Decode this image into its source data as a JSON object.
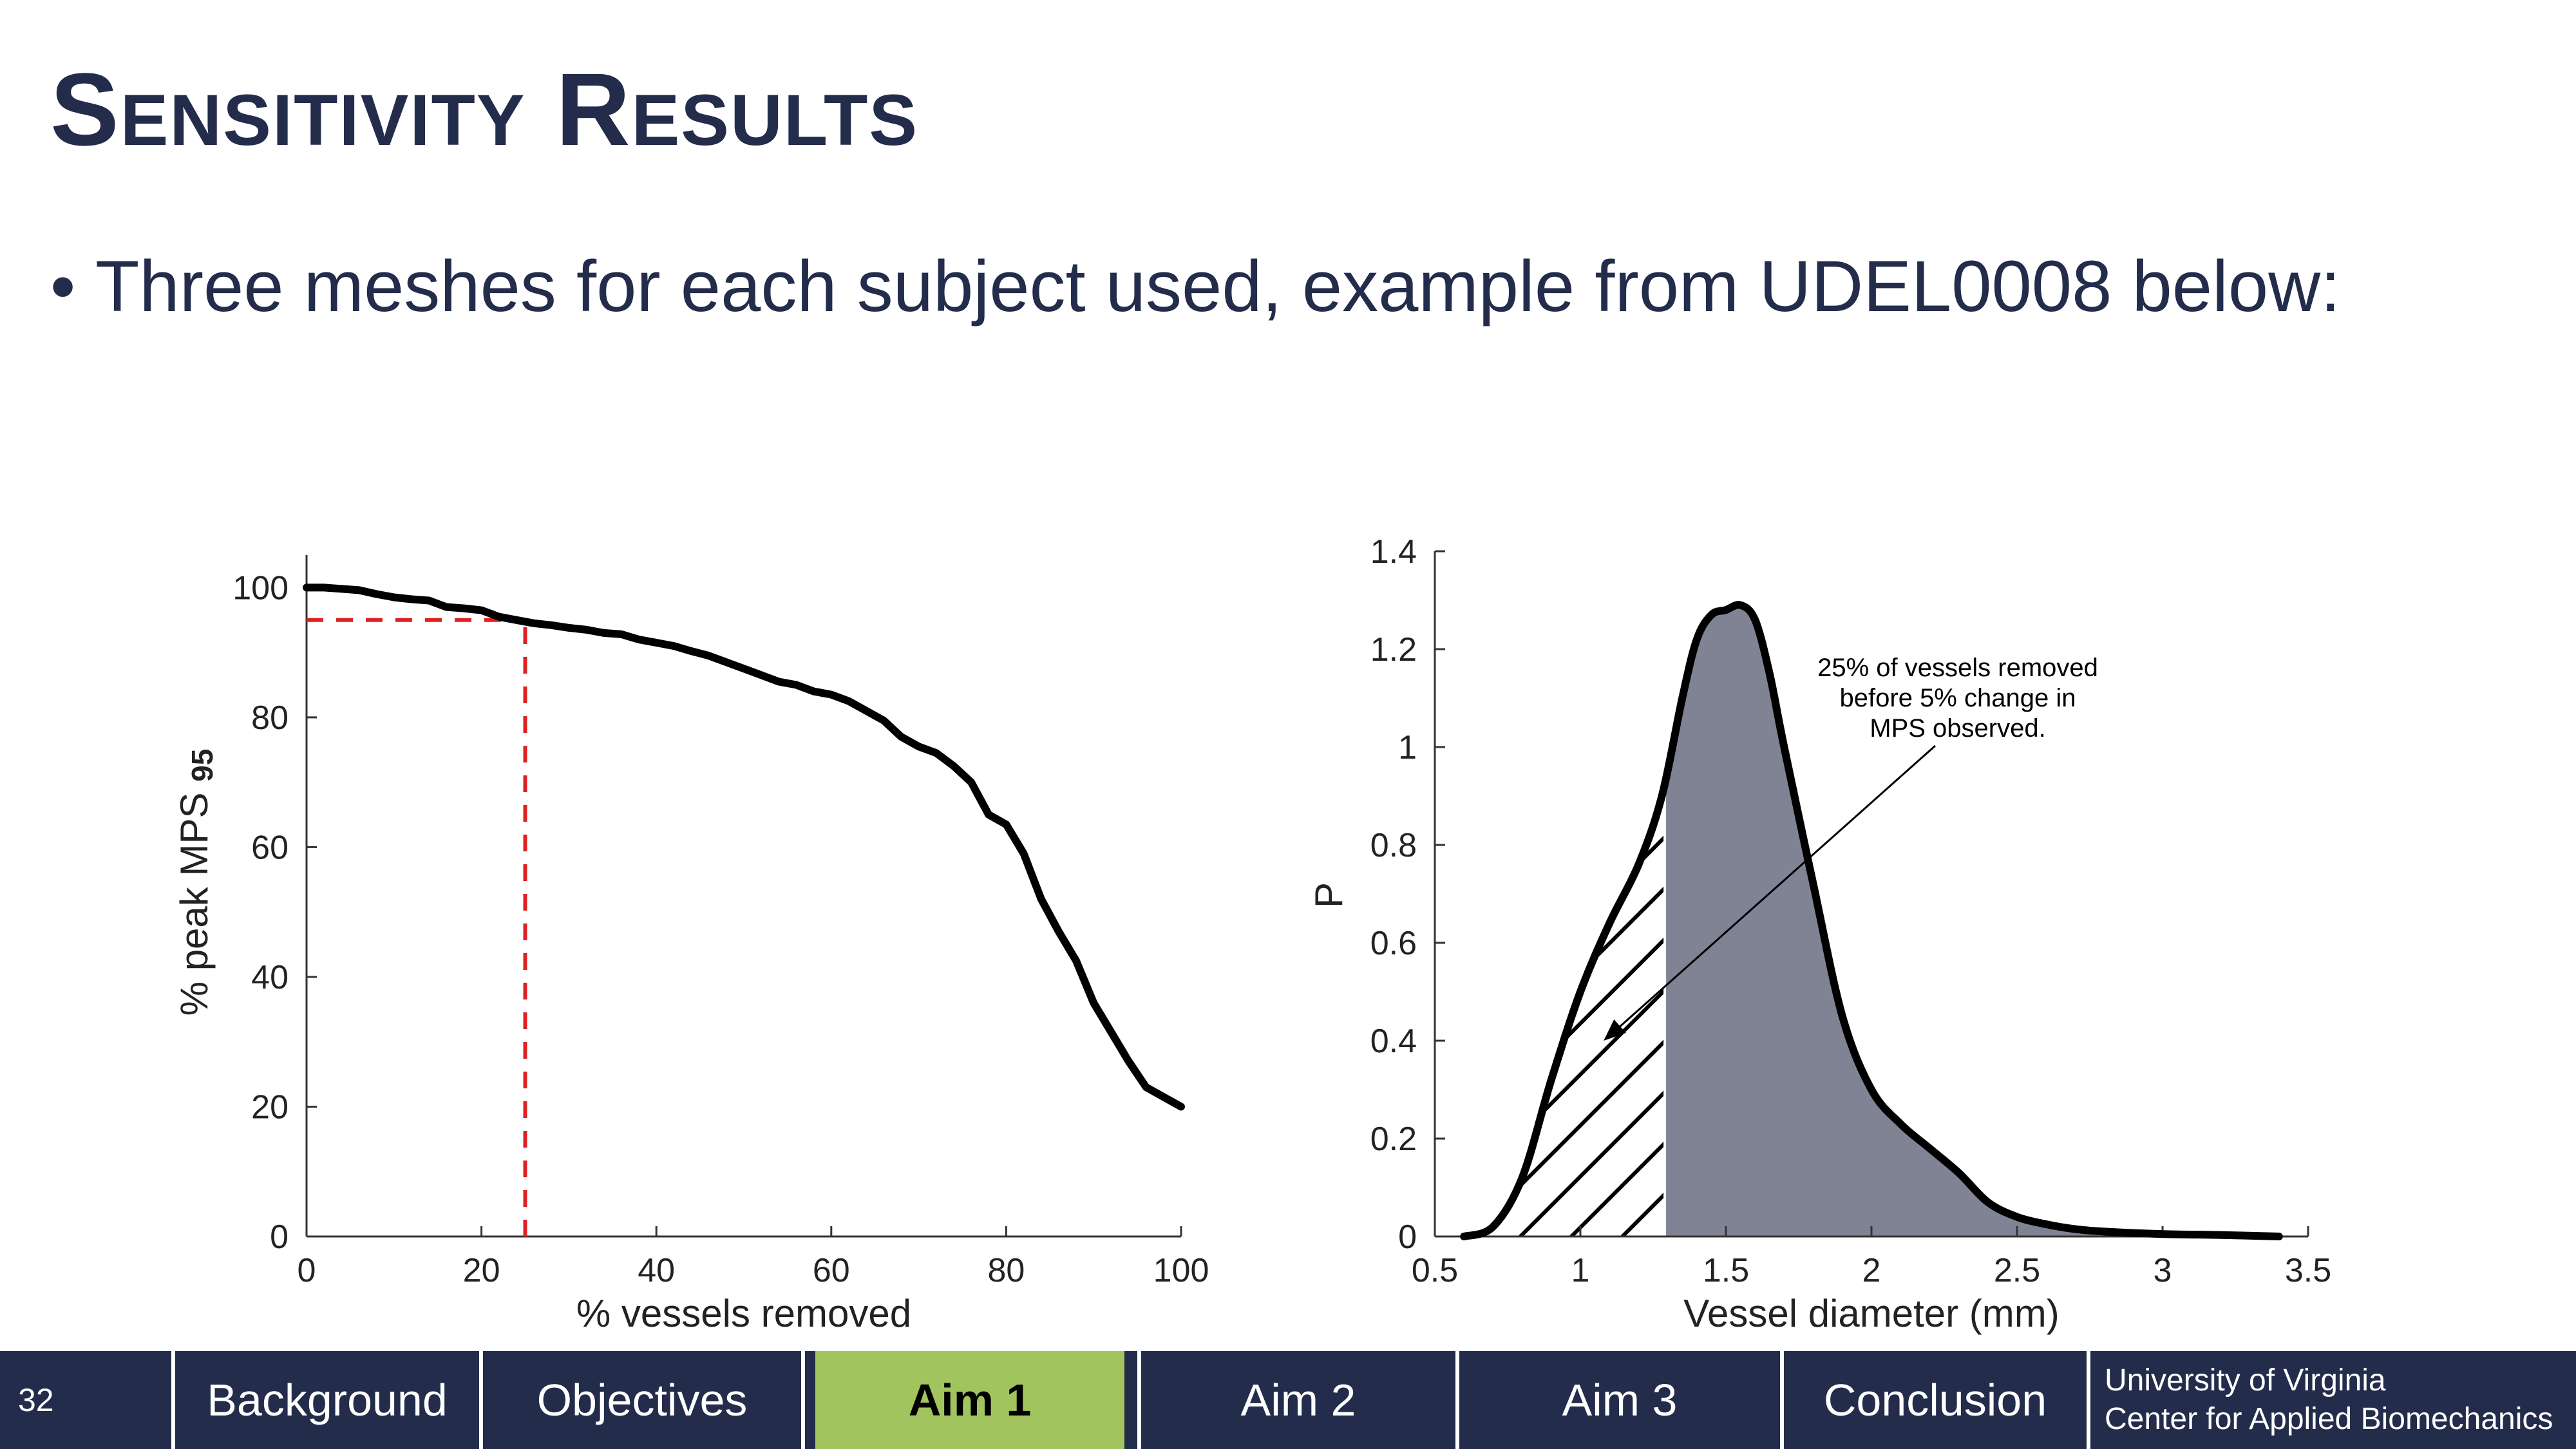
{
  "slide": {
    "title": "Sensitivity Results",
    "bullet": "Three meshes for each subject used, example from UDEL0008 below:",
    "page_number": "32"
  },
  "footer": {
    "nav": [
      {
        "label": "Background",
        "active": false
      },
      {
        "label": "Objectives",
        "active": false
      },
      {
        "label": "Aim 1",
        "active": true
      },
      {
        "label": "Aim 2",
        "active": false
      },
      {
        "label": "Aim 3",
        "active": false
      },
      {
        "label": "Conclusion",
        "active": false
      }
    ],
    "university_line1": "University of Virginia",
    "university_line2": "Center for Applied Biomechanics",
    "bar_color": "#232c4b",
    "active_color": "#a2c45e"
  },
  "chart_data": [
    {
      "type": "line",
      "xlabel": "% vessels removed",
      "ylabel": "% peak MPS",
      "ylabel_subscript": "95",
      "xlim": [
        0,
        100
      ],
      "ylim": [
        0,
        105
      ],
      "xticks": [
        0,
        20,
        40,
        60,
        80,
        100
      ],
      "yticks": [
        0,
        20,
        40,
        60,
        80,
        100
      ],
      "series": [
        {
          "x": [
            0,
            2,
            4,
            6,
            8,
            10,
            12,
            14,
            16,
            18,
            20,
            22,
            24,
            26,
            28,
            30,
            32,
            34,
            36,
            38,
            40,
            42,
            44,
            46,
            48,
            50,
            52,
            54,
            56,
            58,
            60,
            62,
            64,
            66,
            68,
            70,
            72,
            74,
            76,
            78,
            80,
            82,
            84,
            86,
            88,
            90,
            92,
            94,
            96,
            98,
            100
          ],
          "y": [
            100,
            100,
            99.8,
            99.6,
            99,
            98.5,
            98.2,
            98,
            97,
            96.8,
            96.5,
            95.5,
            95,
            94.5,
            94.2,
            93.8,
            93.5,
            93,
            92.8,
            92,
            91.5,
            91,
            90.2,
            89.5,
            88.5,
            87.5,
            86.5,
            85.5,
            85,
            84,
            83.5,
            82.5,
            81,
            79.5,
            77,
            75.5,
            74.5,
            72.5,
            70,
            65,
            63.5,
            59,
            52,
            47,
            42.5,
            36,
            31.5,
            27,
            23,
            21.5,
            20
          ]
        }
      ],
      "reference_lines": [
        {
          "orientation": "horizontal",
          "y": 95,
          "x_from": 0,
          "x_to": 25,
          "color": "#e02020",
          "style": "dashed"
        },
        {
          "orientation": "vertical",
          "x": 25,
          "y_from": 0,
          "y_to": 95,
          "color": "#e02020",
          "style": "dashed"
        }
      ]
    },
    {
      "type": "area",
      "xlabel": "Vessel diameter (mm)",
      "ylabel": "P",
      "xlim": [
        0.5,
        3.5
      ],
      "ylim": [
        0,
        1.4
      ],
      "xticks": [
        0.5,
        1,
        1.5,
        2,
        2.5,
        3,
        3.5
      ],
      "yticks": [
        0,
        0.2,
        0.4,
        0.6,
        0.8,
        1,
        1.2,
        1.4
      ],
      "series": [
        {
          "x": [
            0.6,
            0.7,
            0.8,
            0.9,
            1.0,
            1.1,
            1.2,
            1.28,
            1.35,
            1.4,
            1.45,
            1.5,
            1.55,
            1.6,
            1.65,
            1.7,
            1.8,
            1.9,
            2.0,
            2.1,
            2.2,
            2.3,
            2.4,
            2.5,
            2.6,
            2.7,
            2.8,
            3.0,
            3.2,
            3.4
          ],
          "y": [
            0,
            0.02,
            0.12,
            0.32,
            0.5,
            0.64,
            0.76,
            0.9,
            1.1,
            1.22,
            1.27,
            1.28,
            1.29,
            1.26,
            1.15,
            1.0,
            0.72,
            0.45,
            0.3,
            0.23,
            0.18,
            0.13,
            0.07,
            0.04,
            0.025,
            0.015,
            0.01,
            0.005,
            0.003,
            0
          ]
        }
      ],
      "hatched_region": {
        "x_from": 0.6,
        "x_to": 1.29
      },
      "fill_color": "#7f8393",
      "annotation": {
        "text_lines": [
          "25% of vessels removed",
          "before 5% change in",
          "MPS observed."
        ],
        "arrow_to": [
          1.08,
          0.4
        ]
      }
    }
  ]
}
